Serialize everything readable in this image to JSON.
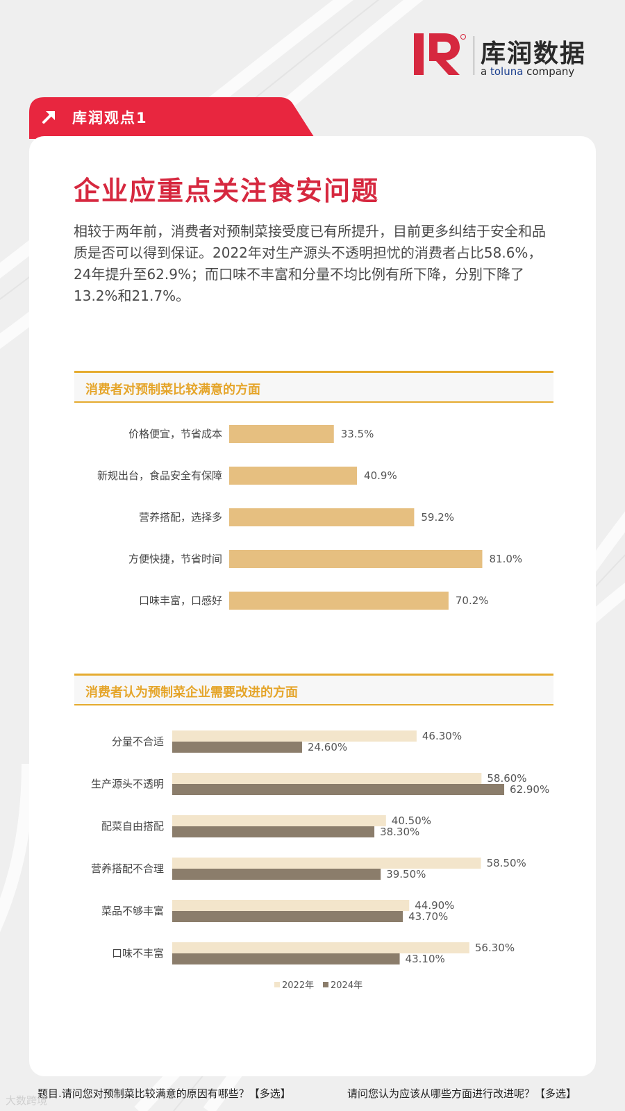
{
  "brand": {
    "name_cn": "库润数据",
    "tagline_prefix": "a ",
    "tagline_accent": "toluna",
    "tagline_suffix": " company",
    "colors": {
      "red": "#d6283f",
      "gold": "#e5ab2f",
      "bar_light": "#e6bf80",
      "bar_2022": "#f3e5cb",
      "bar_2024": "#8b7d6b"
    }
  },
  "tab": {
    "label": "库润观点1",
    "icon": "arrow-up-right-icon"
  },
  "headline": "企业应重点关注食安问题",
  "body_text": "相较于两年前，消费者对预制菜接受度已有所提升，目前更多纠结于安全和品质是否可以得到保证。2022年对生产源头不透明担忧的消费者占比58.6%，24年提升至62.9%；而口味不丰富和分量不均比例有所下降，分别下降了13.2%和21.7%。",
  "chart_data": [
    {
      "type": "bar",
      "orientation": "horizontal",
      "title": "消费者对预制菜比较满意的方面",
      "categories": [
        "价格便宜，节省成本",
        "新规出台，食品安全有保障",
        "营养搭配，选择多",
        "方便快捷，节省时间",
        "口味丰富，口感好"
      ],
      "values": [
        33.5,
        40.9,
        59.2,
        81.0,
        70.2
      ],
      "value_labels": [
        "33.5%",
        "40.9%",
        "59.2%",
        "81.0%",
        "70.2%"
      ],
      "xlim": [
        0,
        100
      ],
      "grid": false,
      "legend": "none"
    },
    {
      "type": "bar",
      "orientation": "horizontal",
      "title": "消费者认为预制菜企业需要改进的方面",
      "categories": [
        "分量不合适",
        "生产源头不透明",
        "配菜自由搭配",
        "营养搭配不合理",
        "菜品不够丰富",
        "口味不丰富"
      ],
      "series": [
        {
          "name": "2022年",
          "values": [
            46.3,
            58.6,
            40.5,
            58.5,
            44.9,
            56.3
          ],
          "labels": [
            "46.30%",
            "58.60%",
            "40.50%",
            "58.50%",
            "44.90%",
            "56.30%"
          ]
        },
        {
          "name": "2024年",
          "values": [
            24.6,
            62.9,
            38.3,
            39.5,
            43.7,
            43.1
          ],
          "labels": [
            "24.60%",
            "62.90%",
            "38.30%",
            "39.50%",
            "43.70%",
            "43.10%"
          ]
        }
      ],
      "xlim": [
        0,
        100
      ],
      "grid": false,
      "legend": "bottom-center"
    }
  ],
  "footer": {
    "left": "题目.请问您对预制菜比较满意的原因有哪些？【多选】",
    "right": "请问您认为应该从哪些方面进行改进呢？【多选】"
  },
  "watermark": "大数跨境"
}
